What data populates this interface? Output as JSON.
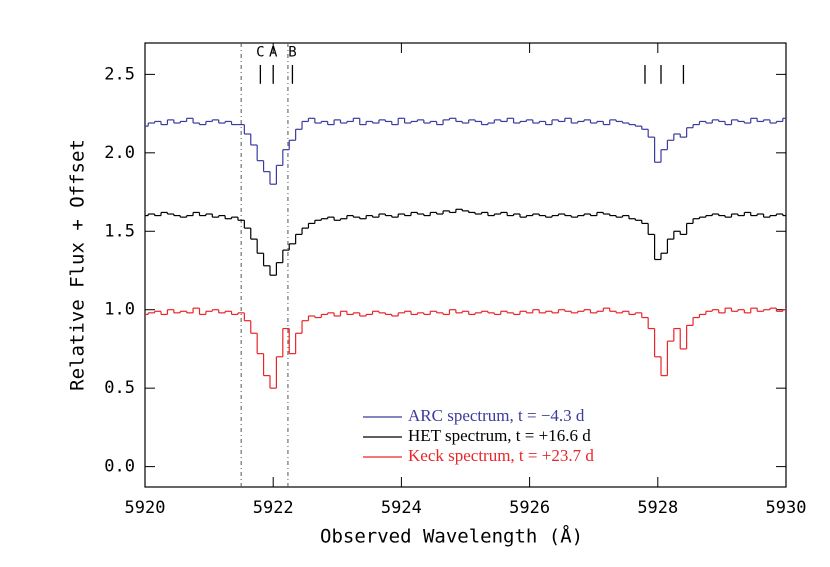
{
  "chart_data": {
    "type": "step",
    "xlabel": "Observed Wavelength (Å)",
    "ylabel": "Relative Flux + Offset",
    "xlim": [
      5920,
      5930
    ],
    "ylim": [
      -0.13,
      2.7
    ],
    "xticks": [
      5920,
      5922,
      5924,
      5926,
      5928,
      5930
    ],
    "yticks": [
      {
        "value": 0,
        "label": "0.0"
      },
      0.5,
      {
        "value": 1,
        "label": "1.0"
      },
      1.5,
      {
        "value": 2,
        "label": "2.0"
      },
      2.5
    ],
    "legend": "lower right",
    "vlines": [
      5921.5,
      5922.23
    ],
    "line_markers": [
      {
        "x": 5921.8,
        "label": "C"
      },
      {
        "x": 5922.0,
        "label": "A"
      },
      {
        "x": 5922.3,
        "label": "B"
      },
      {
        "x": 5927.8,
        "label": null
      },
      {
        "x": 5928.05,
        "label": null
      },
      {
        "x": 5928.4,
        "label": null
      }
    ],
    "x": [
      5920.0,
      5920.1,
      5920.2,
      5920.3,
      5920.4,
      5920.5,
      5920.6,
      5920.7,
      5920.8,
      5920.9,
      5921.0,
      5921.1,
      5921.2,
      5921.3,
      5921.4,
      5921.5,
      5921.6,
      5921.7,
      5921.8,
      5921.9,
      5922.0,
      5922.1,
      5922.2,
      5922.3,
      5922.4,
      5922.5,
      5922.6,
      5922.7,
      5922.8,
      5922.9,
      5923.0,
      5923.1,
      5923.2,
      5923.3,
      5923.4,
      5923.5,
      5923.6,
      5923.7,
      5923.8,
      5923.9,
      5924.0,
      5924.1,
      5924.2,
      5924.3,
      5924.4,
      5924.5,
      5924.6,
      5924.7,
      5924.8,
      5924.9,
      5925.0,
      5925.1,
      5925.2,
      5925.3,
      5925.4,
      5925.5,
      5925.6,
      5925.7,
      5925.8,
      5925.9,
      5926.0,
      5926.1,
      5926.2,
      5926.3,
      5926.4,
      5926.5,
      5926.6,
      5926.7,
      5926.8,
      5926.9,
      5927.0,
      5927.1,
      5927.2,
      5927.3,
      5927.4,
      5927.5,
      5927.6,
      5927.7,
      5927.8,
      5927.9,
      5928.0,
      5928.1,
      5928.2,
      5928.3,
      5928.4,
      5928.5,
      5928.6,
      5928.7,
      5928.8,
      5928.9,
      5929.0,
      5929.1,
      5929.2,
      5929.3,
      5929.4,
      5929.5,
      5929.6,
      5929.7,
      5929.8,
      5929.9,
      5930.0
    ],
    "series": [
      {
        "name": "ARC spectrum, t = −4.3 d",
        "color": "#3b3b9f",
        "values": [
          2.17,
          2.19,
          2.2,
          2.18,
          2.21,
          2.19,
          2.2,
          2.22,
          2.19,
          2.18,
          2.2,
          2.21,
          2.19,
          2.2,
          2.18,
          2.18,
          2.12,
          2.05,
          1.95,
          1.88,
          1.8,
          1.92,
          2.02,
          2.08,
          2.15,
          2.2,
          2.22,
          2.19,
          2.2,
          2.18,
          2.21,
          2.19,
          2.2,
          2.22,
          2.18,
          2.2,
          2.19,
          2.21,
          2.2,
          2.18,
          2.22,
          2.19,
          2.2,
          2.21,
          2.19,
          2.2,
          2.18,
          2.21,
          2.22,
          2.2,
          2.19,
          2.21,
          2.2,
          2.18,
          2.19,
          2.21,
          2.2,
          2.22,
          2.19,
          2.2,
          2.21,
          2.19,
          2.2,
          2.18,
          2.21,
          2.2,
          2.22,
          2.19,
          2.2,
          2.21,
          2.19,
          2.2,
          2.18,
          2.21,
          2.2,
          2.19,
          2.18,
          2.17,
          2.15,
          2.1,
          1.94,
          2.02,
          2.08,
          2.12,
          2.1,
          2.16,
          2.18,
          2.2,
          2.19,
          2.21,
          2.2,
          2.18,
          2.21,
          2.2,
          2.19,
          2.22,
          2.2,
          2.21,
          2.19,
          2.2,
          2.22
        ]
      },
      {
        "name": "HET spectrum, t = +16.6 d",
        "color": "#000000",
        "values": [
          1.6,
          1.61,
          1.6,
          1.62,
          1.61,
          1.6,
          1.59,
          1.6,
          1.62,
          1.6,
          1.61,
          1.59,
          1.6,
          1.58,
          1.59,
          1.57,
          1.52,
          1.45,
          1.36,
          1.28,
          1.22,
          1.3,
          1.38,
          1.42,
          1.48,
          1.52,
          1.55,
          1.57,
          1.58,
          1.59,
          1.57,
          1.58,
          1.6,
          1.59,
          1.58,
          1.6,
          1.59,
          1.61,
          1.6,
          1.59,
          1.61,
          1.6,
          1.62,
          1.61,
          1.6,
          1.62,
          1.61,
          1.63,
          1.62,
          1.64,
          1.63,
          1.62,
          1.61,
          1.62,
          1.6,
          1.61,
          1.62,
          1.6,
          1.61,
          1.59,
          1.6,
          1.61,
          1.6,
          1.59,
          1.6,
          1.61,
          1.6,
          1.59,
          1.6,
          1.61,
          1.6,
          1.62,
          1.61,
          1.6,
          1.59,
          1.6,
          1.58,
          1.57,
          1.55,
          1.48,
          1.32,
          1.36,
          1.45,
          1.5,
          1.48,
          1.55,
          1.58,
          1.59,
          1.6,
          1.61,
          1.6,
          1.59,
          1.61,
          1.6,
          1.62,
          1.6,
          1.61,
          1.59,
          1.6,
          1.61,
          1.6
        ]
      },
      {
        "name": "Keck spectrum, t = +23.7 d",
        "color": "#e8262a",
        "values": [
          0.97,
          0.98,
          0.99,
          0.97,
          1.0,
          0.98,
          0.99,
          0.98,
          1.01,
          0.97,
          0.99,
          1.0,
          0.98,
          0.99,
          0.97,
          0.98,
          0.93,
          0.85,
          0.72,
          0.58,
          0.5,
          0.7,
          0.88,
          0.72,
          0.85,
          0.93,
          0.96,
          0.95,
          0.97,
          0.98,
          0.96,
          0.99,
          0.97,
          0.98,
          0.96,
          0.97,
          0.99,
          0.98,
          0.97,
          0.96,
          0.98,
          0.99,
          0.97,
          0.98,
          0.97,
          0.99,
          0.98,
          0.97,
          1.0,
          0.98,
          0.99,
          0.97,
          0.98,
          0.99,
          0.98,
          0.97,
          0.99,
          0.98,
          0.97,
          0.99,
          0.98,
          1.0,
          0.98,
          0.99,
          0.98,
          1.0,
          0.99,
          0.98,
          0.99,
          1.0,
          0.98,
          0.99,
          1.01,
          0.99,
          0.98,
          0.99,
          0.97,
          0.98,
          0.95,
          0.88,
          0.7,
          0.58,
          0.8,
          0.88,
          0.75,
          0.9,
          0.95,
          0.97,
          0.99,
          1.0,
          0.98,
          1.01,
          0.99,
          1.0,
          0.98,
          1.01,
          0.99,
          1.0,
          1.01,
          0.99,
          1.0
        ]
      }
    ]
  }
}
